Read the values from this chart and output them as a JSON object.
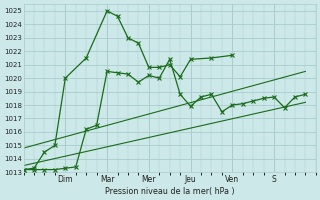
{
  "bg_color": "#cce8e8",
  "grid_color": "#aacccc",
  "line_color": "#1a6b1a",
  "xlabel": "Pression niveau de la mer( hPa )",
  "ylim": [
    1013,
    1025.5
  ],
  "yticks": [
    1013,
    1014,
    1015,
    1016,
    1017,
    1018,
    1019,
    1020,
    1021,
    1022,
    1023,
    1024,
    1025
  ],
  "xlim": [
    0,
    14
  ],
  "day_vlines": [
    2,
    4,
    6,
    8,
    10,
    12
  ],
  "day_labels": [
    "Dim",
    "Mar",
    "Mer",
    "Jeu",
    "Ven",
    "S"
  ],
  "series1_x": [
    0,
    0.5,
    1.0,
    1.5,
    2.0,
    3.0,
    4.0,
    4.5,
    5.0,
    5.5,
    6.0,
    6.5,
    7.0,
    7.5,
    8.0,
    9.0,
    10.0
  ],
  "series1_y": [
    1013.2,
    1013.3,
    1014.5,
    1015.0,
    1020.0,
    1021.5,
    1025.0,
    1024.6,
    1023.0,
    1022.6,
    1020.8,
    1020.8,
    1021.0,
    1020.1,
    1021.4,
    1021.5,
    1021.7
  ],
  "series2_x": [
    0,
    0.5,
    1.0,
    1.5,
    2.0,
    2.5,
    3.0,
    3.5,
    4.0,
    4.5,
    5.0,
    5.5,
    6.0,
    6.5,
    7.0,
    7.5,
    8.0,
    8.5,
    9.0,
    9.5,
    10.0,
    10.5,
    11.0,
    11.5,
    12.0,
    12.5,
    13.0,
    13.5
  ],
  "series2_y": [
    1013.2,
    1013.2,
    1013.2,
    1013.2,
    1013.3,
    1013.4,
    1016.2,
    1016.5,
    1020.5,
    1020.4,
    1020.3,
    1019.7,
    1020.2,
    1020.0,
    1021.4,
    1018.8,
    1017.9,
    1018.6,
    1018.8,
    1017.5,
    1018.0,
    1018.1,
    1018.3,
    1018.5,
    1018.6,
    1017.8,
    1018.6,
    1018.8
  ],
  "line1_x": [
    0,
    13.5
  ],
  "line1_y": [
    1014.8,
    1020.5
  ],
  "line2_x": [
    0,
    13.5
  ],
  "line2_y": [
    1013.5,
    1018.2
  ]
}
